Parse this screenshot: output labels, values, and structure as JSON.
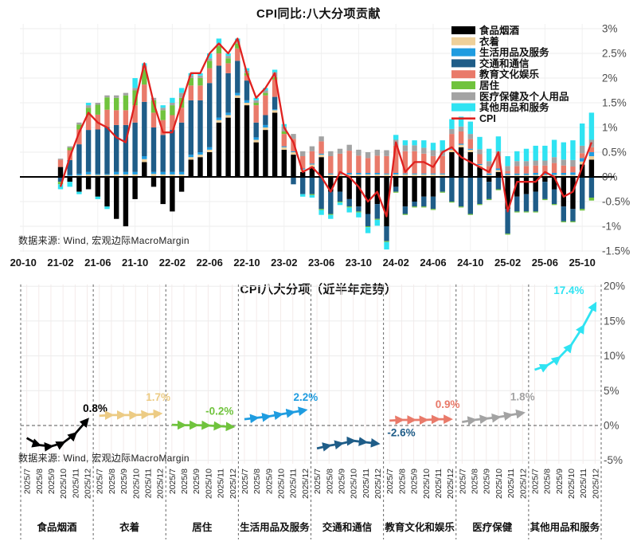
{
  "accent_colors": {
    "cpi_red": "#e0211f",
    "grid_light": "#ededed",
    "grid_pink": "#f4ebea",
    "axis_black": "#000000",
    "tick_gray": "#555555"
  },
  "chart_data": [
    {
      "type": "bar",
      "subtype": "stacked-bar-with-line",
      "title": "CPI同比:八大分项贡献",
      "source": "数据来源: Wind, 宏观边际MacroMargin",
      "ylim": [
        -1.5,
        3
      ],
      "yticks": [
        {
          "v": 3,
          "label": "3%"
        },
        {
          "v": 2.5,
          "label": "2.5%"
        },
        {
          "v": 2,
          "label": "2%"
        },
        {
          "v": 1.5,
          "label": "1.5%"
        },
        {
          "v": 1,
          "label": "1%"
        },
        {
          "v": 0.5,
          "label": "0.5%"
        },
        {
          "v": 0,
          "label": "0%"
        },
        {
          "v": -0.5,
          "label": "-0.5%"
        },
        {
          "v": -1,
          "label": "-1%"
        },
        {
          "v": -1.5,
          "label": "-1.5%"
        }
      ],
      "x_tick_labels": [
        {
          "i": -4,
          "label": "20-10"
        },
        {
          "i": 0,
          "label": "21-02"
        },
        {
          "i": 4,
          "label": "21-06"
        },
        {
          "i": 8,
          "label": "21-10"
        },
        {
          "i": 12,
          "label": "22-02"
        },
        {
          "i": 16,
          "label": "22-06"
        },
        {
          "i": 20,
          "label": "22-10"
        },
        {
          "i": 24,
          "label": "23-02"
        },
        {
          "i": 28,
          "label": "23-06"
        },
        {
          "i": 32,
          "label": "23-10"
        },
        {
          "i": 36,
          "label": "24-02"
        },
        {
          "i": 40,
          "label": "24-06"
        },
        {
          "i": 44,
          "label": "24-10"
        },
        {
          "i": 48,
          "label": "25-02"
        },
        {
          "i": 52,
          "label": "25-06"
        },
        {
          "i": 56,
          "label": "25-10"
        }
      ],
      "x": [
        "2021-02",
        "2021-03",
        "2021-04",
        "2021-05",
        "2021-06",
        "2021-07",
        "2021-08",
        "2021-09",
        "2021-10",
        "2021-11",
        "2021-12",
        "2022-01",
        "2022-02",
        "2022-03",
        "2022-04",
        "2022-05",
        "2022-06",
        "2022-07",
        "2022-08",
        "2022-09",
        "2022-10",
        "2022-11",
        "2022-12",
        "2023-01",
        "2023-02",
        "2023-03",
        "2023-04",
        "2023-05",
        "2023-06",
        "2023-07",
        "2023-08",
        "2023-09",
        "2023-10",
        "2023-11",
        "2023-12",
        "2024-01",
        "2024-02",
        "2024-03",
        "2024-04",
        "2024-05",
        "2024-06",
        "2024-07",
        "2024-08",
        "2024-09",
        "2024-10",
        "2024-11",
        "2024-12",
        "2025-01",
        "2025-02",
        "2025-03",
        "2025-04",
        "2025-05",
        "2025-06",
        "2025-07",
        "2025-08",
        "2025-09",
        "2025-10",
        "2025-11"
      ],
      "series": [
        {
          "name": "食品烟酒",
          "color": "#000000",
          "values": [
            0.2,
            -0.1,
            -0.3,
            -0.25,
            -0.4,
            -0.6,
            -0.85,
            -1.0,
            -0.45,
            0.3,
            -0.2,
            -0.55,
            -0.7,
            -0.3,
            0.35,
            0.4,
            0.5,
            1.1,
            1.2,
            1.6,
            1.45,
            0.7,
            0.95,
            1.3,
            0.55,
            0.45,
            0.1,
            0.2,
            0.4,
            -0.3,
            -0.3,
            -0.45,
            -0.6,
            -0.75,
            -0.55,
            -1.0,
            -0.2,
            -0.6,
            -0.5,
            -0.4,
            -0.4,
            0.0,
            0.5,
            0.6,
            0.5,
            0.2,
            -0.1,
            0.1,
            -0.65,
            -0.4,
            -0.35,
            -0.3,
            -0.1,
            -0.25,
            -0.6,
            -0.65,
            0.25,
            0.35
          ]
        },
        {
          "name": "衣着",
          "color": "#eed09a",
          "values": [
            0.0,
            0.02,
            0.03,
            0.05,
            0.04,
            0.04,
            0.05,
            0.05,
            0.05,
            0.06,
            0.06,
            0.05,
            0.05,
            0.05,
            0.05,
            0.05,
            0.05,
            0.05,
            0.05,
            0.05,
            0.05,
            0.05,
            0.05,
            0.05,
            0.05,
            0.05,
            0.05,
            0.05,
            0.05,
            0.05,
            0.05,
            0.05,
            0.05,
            0.05,
            0.05,
            0.05,
            0.05,
            0.05,
            0.05,
            0.05,
            0.05,
            0.05,
            0.05,
            0.05,
            0.05,
            0.04,
            0.04,
            0.04,
            0.04,
            0.04,
            0.04,
            0.04,
            0.04,
            0.04,
            0.04,
            0.04,
            0.06,
            0.07
          ]
        },
        {
          "name": "生活用品及服务",
          "color": "#1f9ce0",
          "values": [
            0.0,
            0.02,
            0.03,
            0.05,
            0.02,
            0.02,
            0.05,
            0.05,
            0.05,
            0.06,
            0.04,
            0.05,
            0.05,
            0.05,
            0.05,
            0.05,
            0.05,
            0.05,
            0.05,
            0.05,
            0.05,
            0.05,
            0.05,
            0.02,
            0.02,
            0.02,
            0.02,
            0.02,
            0.02,
            0.02,
            0.02,
            0.03,
            0.03,
            0.03,
            0.03,
            0.02,
            0.03,
            0.02,
            0.02,
            0.02,
            0.02,
            0.02,
            0.02,
            0.02,
            0.02,
            0.02,
            0.03,
            0.03,
            0.03,
            0.03,
            0.03,
            0.04,
            0.04,
            0.04,
            0.04,
            0.05,
            0.07,
            0.08
          ]
        },
        {
          "name": "交通和通信",
          "color": "#1f5d88",
          "values": [
            -0.1,
            0.3,
            0.6,
            0.85,
            0.9,
            0.95,
            0.95,
            0.95,
            1.0,
            1.1,
            0.9,
            0.75,
            0.85,
            1.0,
            1.1,
            1.05,
            1.3,
            1.05,
            0.8,
            0.65,
            0.4,
            0.3,
            0.2,
            0.25,
            0.0,
            -0.15,
            -0.35,
            -0.35,
            -0.65,
            -0.45,
            -0.2,
            -0.15,
            -0.1,
            -0.25,
            -0.3,
            -0.3,
            -0.1,
            -0.15,
            -0.1,
            -0.2,
            -0.25,
            -0.3,
            -0.5,
            -0.6,
            -0.75,
            -0.55,
            -0.35,
            -0.25,
            -0.5,
            -0.3,
            -0.35,
            -0.4,
            -0.35,
            -0.3,
            -0.3,
            -0.25,
            -0.65,
            -0.42
          ]
        },
        {
          "name": "教育文化娱乐",
          "color": "#e97a6a",
          "values": [
            0.15,
            0.2,
            0.3,
            0.3,
            0.3,
            0.35,
            0.3,
            0.3,
            0.35,
            0.35,
            0.3,
            0.3,
            0.3,
            0.3,
            0.3,
            0.3,
            0.3,
            0.25,
            0.2,
            0.25,
            0.1,
            0.35,
            0.4,
            0.35,
            0.25,
            0.25,
            0.25,
            0.25,
            0.25,
            0.35,
            0.4,
            0.45,
            0.35,
            0.3,
            0.35,
            0.35,
            0.55,
            0.45,
            0.45,
            0.4,
            0.35,
            0.35,
            0.3,
            0.25,
            0.2,
            0.2,
            0.15,
            0.25,
            0.05,
            0.15,
            0.15,
            0.15,
            0.15,
            0.2,
            0.15,
            0.12,
            0.1,
            0.1
          ]
        },
        {
          "name": "居住",
          "color": "#70c33d",
          "values": [
            -0.05,
            0.05,
            0.1,
            0.15,
            0.2,
            0.25,
            0.25,
            0.3,
            0.3,
            0.3,
            0.25,
            0.2,
            0.2,
            0.2,
            0.15,
            0.15,
            0.15,
            0.15,
            0.1,
            0.1,
            0.05,
            0.05,
            0.05,
            0.05,
            0.05,
            0.0,
            0.0,
            -0.02,
            -0.02,
            -0.02,
            -0.02,
            -0.02,
            -0.02,
            -0.02,
            -0.02,
            -0.02,
            -0.02,
            -0.02,
            -0.02,
            -0.02,
            -0.02,
            -0.02,
            -0.02,
            -0.02,
            -0.02,
            -0.02,
            -0.02,
            -0.02,
            -0.02,
            -0.02,
            -0.02,
            -0.02,
            -0.02,
            -0.02,
            -0.02,
            -0.02,
            -0.03,
            -0.06
          ]
        },
        {
          "name": "医疗保健及个人用品",
          "color": "#a3a3a3",
          "values": [
            0.02,
            0.03,
            0.04,
            0.05,
            0.04,
            0.04,
            0.05,
            0.05,
            0.05,
            0.08,
            0.05,
            0.05,
            0.05,
            0.1,
            0.05,
            0.05,
            0.05,
            0.05,
            0.05,
            0.05,
            0.05,
            0.05,
            0.05,
            0.1,
            0.1,
            0.1,
            0.1,
            0.1,
            0.1,
            0.1,
            0.1,
            0.12,
            0.12,
            0.12,
            0.12,
            0.12,
            0.12,
            0.12,
            0.12,
            0.12,
            0.12,
            0.12,
            0.1,
            0.1,
            0.1,
            0.1,
            0.1,
            0.1,
            0.1,
            0.1,
            0.1,
            0.1,
            0.1,
            0.12,
            0.12,
            0.13,
            0.15,
            0.15
          ]
        },
        {
          "name": "其他用品和服务",
          "color": "#2fe3f2",
          "values": [
            -0.1,
            -0.1,
            -0.05,
            0.05,
            -0.05,
            -0.05,
            0.0,
            0.0,
            0.2,
            0.05,
            0.0,
            0.05,
            0.1,
            0.1,
            0.05,
            0.05,
            0.1,
            0.1,
            0.05,
            0.05,
            0.05,
            0.05,
            0.05,
            0.05,
            0.05,
            0.0,
            -0.05,
            -0.05,
            -0.1,
            -0.08,
            -0.05,
            -0.1,
            -0.1,
            -0.12,
            -0.12,
            -0.15,
            0.1,
            0.1,
            0.1,
            0.15,
            0.15,
            0.2,
            0.2,
            0.2,
            0.25,
            0.25,
            0.25,
            0.3,
            0.2,
            0.2,
            0.25,
            0.3,
            0.3,
            0.35,
            0.35,
            0.4,
            0.45,
            0.55
          ]
        }
      ],
      "line_series": {
        "name": "CPI",
        "color": "#e0211f",
        "values": [
          -0.2,
          0.4,
          0.9,
          1.3,
          1.1,
          1.0,
          0.8,
          0.7,
          1.5,
          2.3,
          1.5,
          0.9,
          0.9,
          1.5,
          2.1,
          2.1,
          2.5,
          2.7,
          2.5,
          2.8,
          2.1,
          1.6,
          1.8,
          2.1,
          1.0,
          0.7,
          0.1,
          0.2,
          0.0,
          -0.3,
          0.1,
          0.0,
          -0.2,
          -0.5,
          -0.3,
          -0.8,
          0.7,
          0.1,
          0.3,
          0.3,
          0.2,
          0.5,
          0.6,
          0.4,
          0.3,
          0.2,
          0.1,
          0.5,
          -0.7,
          -0.1,
          -0.1,
          -0.1,
          0.1,
          0.0,
          -0.4,
          -0.3,
          0.2,
          0.7
        ]
      },
      "legend_position": "top-right"
    },
    {
      "type": "line",
      "subtype": "small-multiples-arrow-lines",
      "title": "CPI八大分项（近半年走势）",
      "source": "数据来源: Wind, 宏观边际MacroMargin",
      "ylim": [
        -5,
        20
      ],
      "yticks": [
        {
          "v": 20,
          "label": "20%"
        },
        {
          "v": 15,
          "label": "15%"
        },
        {
          "v": 10,
          "label": "10%"
        },
        {
          "v": 5,
          "label": "5%"
        },
        {
          "v": 0,
          "label": "0%"
        },
        {
          "v": -5,
          "label": "-5%"
        }
      ],
      "x": [
        "2025/7",
        "2025/8",
        "2025/9",
        "2025/10",
        "2025/11",
        "2025/12"
      ],
      "panels": [
        {
          "name": "食品烟酒",
          "color": "#000000",
          "end_label": "0.8%",
          "values": [
            -1.8,
            -2.8,
            -3.0,
            -2.5,
            -1.2,
            0.8
          ]
        },
        {
          "name": "衣着",
          "color": "#eccb84",
          "end_label": "1.7%",
          "values": [
            1.4,
            1.5,
            1.5,
            1.5,
            1.6,
            1.7
          ]
        },
        {
          "name": "居住",
          "color": "#70c33d",
          "end_label": "-0.2%",
          "values": [
            0.1,
            0.05,
            0.05,
            0.0,
            -0.1,
            -0.2
          ]
        },
        {
          "name": "生活用品及服务",
          "color": "#1f9ce0",
          "end_label": "2.2%",
          "values": [
            0.9,
            1.1,
            1.3,
            1.6,
            1.9,
            2.2
          ]
        },
        {
          "name": "交通和通信",
          "color": "#1f5d88",
          "end_label": "-2.6%",
          "values": [
            -3.3,
            -2.9,
            -2.6,
            -2.2,
            -2.4,
            -2.6
          ]
        },
        {
          "name": "教育文化和娱乐",
          "color": "#e97a6a",
          "end_label": "0.9%",
          "values": [
            0.7,
            0.8,
            0.8,
            0.8,
            0.9,
            0.9
          ]
        },
        {
          "name": "医疗保健",
          "color": "#a3a3a3",
          "end_label": "1.8%",
          "values": [
            0.5,
            0.8,
            1.0,
            1.2,
            1.5,
            1.8
          ]
        },
        {
          "name": "其他用品和服务",
          "color": "#2fe3f2",
          "end_label": "17.4%",
          "values": [
            8.0,
            8.6,
            9.7,
            11.5,
            14.2,
            17.4
          ]
        }
      ]
    }
  ]
}
